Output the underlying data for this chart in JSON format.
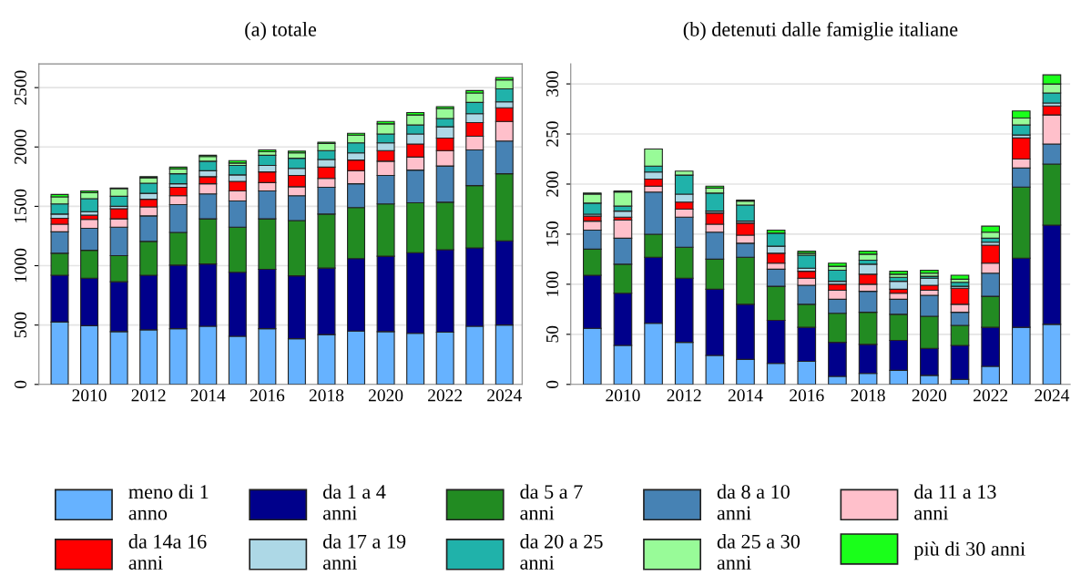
{
  "chart_data": [
    {
      "type": "bar",
      "stacked": true,
      "title": "(a) totale",
      "categories": [
        null,
        "2010",
        null,
        "2012",
        null,
        "2014",
        null,
        "2016",
        null,
        "2018",
        null,
        "2020",
        null,
        "2022",
        null,
        "2024"
      ],
      "ylim": [
        0,
        2700
      ],
      "yticks": [
        0,
        500,
        1000,
        1500,
        2000,
        2500
      ],
      "grid": "y",
      "legend": "bottom",
      "series": [
        {
          "name": "meno di 1\nanno",
          "color": "#66b2ff",
          "values": [
            525,
            495,
            445,
            460,
            470,
            490,
            405,
            470,
            385,
            420,
            450,
            445,
            430,
            440,
            490,
            500
          ]
        },
        {
          "name": "da 1 a 4\nanni",
          "color": "#00008b",
          "values": [
            395,
            400,
            420,
            460,
            535,
            525,
            540,
            500,
            530,
            560,
            610,
            635,
            680,
            695,
            660,
            710
          ]
        },
        {
          "name": "da 5 a 7\nanni",
          "color": "#228b22",
          "values": [
            185,
            235,
            220,
            285,
            275,
            380,
            380,
            425,
            465,
            455,
            430,
            440,
            420,
            400,
            525,
            565
          ]
        },
        {
          "name": "da 8 a 10\nanni",
          "color": "#4682b4",
          "values": [
            180,
            185,
            240,
            215,
            235,
            210,
            220,
            235,
            210,
            225,
            200,
            240,
            275,
            305,
            300,
            275
          ]
        },
        {
          "name": "da 11 a 13\nanni",
          "color": "#ffc0cb",
          "values": [
            65,
            75,
            70,
            75,
            75,
            85,
            85,
            70,
            75,
            75,
            110,
            120,
            110,
            130,
            115,
            165
          ]
        },
        {
          "name": "da 14a 16\nanni",
          "color": "#ff0000",
          "values": [
            50,
            35,
            85,
            65,
            70,
            60,
            80,
            90,
            95,
            95,
            90,
            90,
            110,
            105,
            115,
            115
          ]
        },
        {
          "name": "da 17 a 19\nanni",
          "color": "#add8e6",
          "values": [
            35,
            30,
            20,
            50,
            30,
            50,
            55,
            55,
            60,
            65,
            60,
            65,
            85,
            95,
            75,
            50
          ]
        },
        {
          "name": "da 20 a 25\nanni",
          "color": "#20b2aa",
          "values": [
            85,
            110,
            85,
            85,
            85,
            80,
            80,
            85,
            85,
            75,
            85,
            75,
            75,
            70,
            95,
            110
          ]
        },
        {
          "name": "da 25 a 30\nanni",
          "color": "#98fb98",
          "values": [
            60,
            50,
            65,
            45,
            40,
            40,
            20,
            30,
            45,
            60,
            65,
            85,
            85,
            85,
            80,
            75
          ]
        },
        {
          "name": "più di 30 anni",
          "color": "#1aff1a",
          "values": [
            20,
            15,
            5,
            10,
            15,
            10,
            20,
            15,
            15,
            10,
            15,
            20,
            20,
            15,
            20,
            20
          ]
        }
      ]
    },
    {
      "type": "bar",
      "stacked": true,
      "title": "(b) detenuti dalle famiglie italiane",
      "categories": [
        null,
        "2010",
        null,
        "2012",
        null,
        "2014",
        null,
        "2016",
        null,
        "2018",
        null,
        "2020",
        null,
        "2022",
        null,
        "2024"
      ],
      "ylim": [
        0,
        320
      ],
      "yticks": [
        0,
        50,
        100,
        150,
        200,
        250,
        300
      ],
      "grid": "y",
      "legend": false,
      "series": [
        {
          "color": "#66b2ff",
          "values": [
            56,
            39,
            61,
            42,
            29,
            25,
            21,
            23,
            8,
            11,
            14,
            9,
            5,
            18,
            57,
            60
          ]
        },
        {
          "color": "#00008b",
          "values": [
            53,
            52,
            66,
            64,
            66,
            55,
            43,
            34,
            34,
            29,
            30,
            27,
            34,
            39,
            69,
            99
          ]
        },
        {
          "color": "#228b22",
          "values": [
            26,
            29,
            23,
            31,
            30,
            47,
            34,
            23,
            29,
            32,
            26,
            32,
            20,
            31,
            71,
            61
          ]
        },
        {
          "color": "#4682b4",
          "values": [
            19,
            26,
            42,
            30,
            27,
            14,
            17,
            19,
            14,
            21,
            15,
            21,
            13,
            23,
            19,
            20
          ]
        },
        {
          "color": "#ffc0cb",
          "values": [
            9,
            18,
            6,
            8,
            8,
            8,
            6,
            7,
            9,
            7,
            6,
            5,
            8,
            10,
            9,
            29
          ]
        },
        {
          "color": "#ff0000",
          "values": [
            5,
            3,
            7,
            7,
            11,
            12,
            10,
            7,
            6,
            10,
            4,
            5,
            16,
            18,
            21,
            9
          ]
        },
        {
          "color": "#add8e6",
          "values": [
            2,
            6,
            7,
            8,
            2,
            2,
            7,
            3,
            3,
            10,
            8,
            7,
            2,
            3,
            3,
            3
          ]
        },
        {
          "color": "#20b2aa",
          "values": [
            11,
            5,
            6,
            19,
            18,
            16,
            13,
            13,
            11,
            4,
            4,
            2,
            4,
            4,
            10,
            10
          ]
        },
        {
          "color": "#98fb98",
          "values": [
            9,
            14,
            17,
            4,
            5,
            4,
            null,
            2,
            4,
            6,
            3,
            3,
            3,
            6,
            7,
            9
          ]
        },
        {
          "color": "#1aff1a",
          "values": [
            1,
            1,
            null,
            null,
            2,
            1,
            3,
            2,
            3,
            3,
            3,
            3,
            4,
            6,
            7,
            9
          ]
        }
      ]
    }
  ]
}
